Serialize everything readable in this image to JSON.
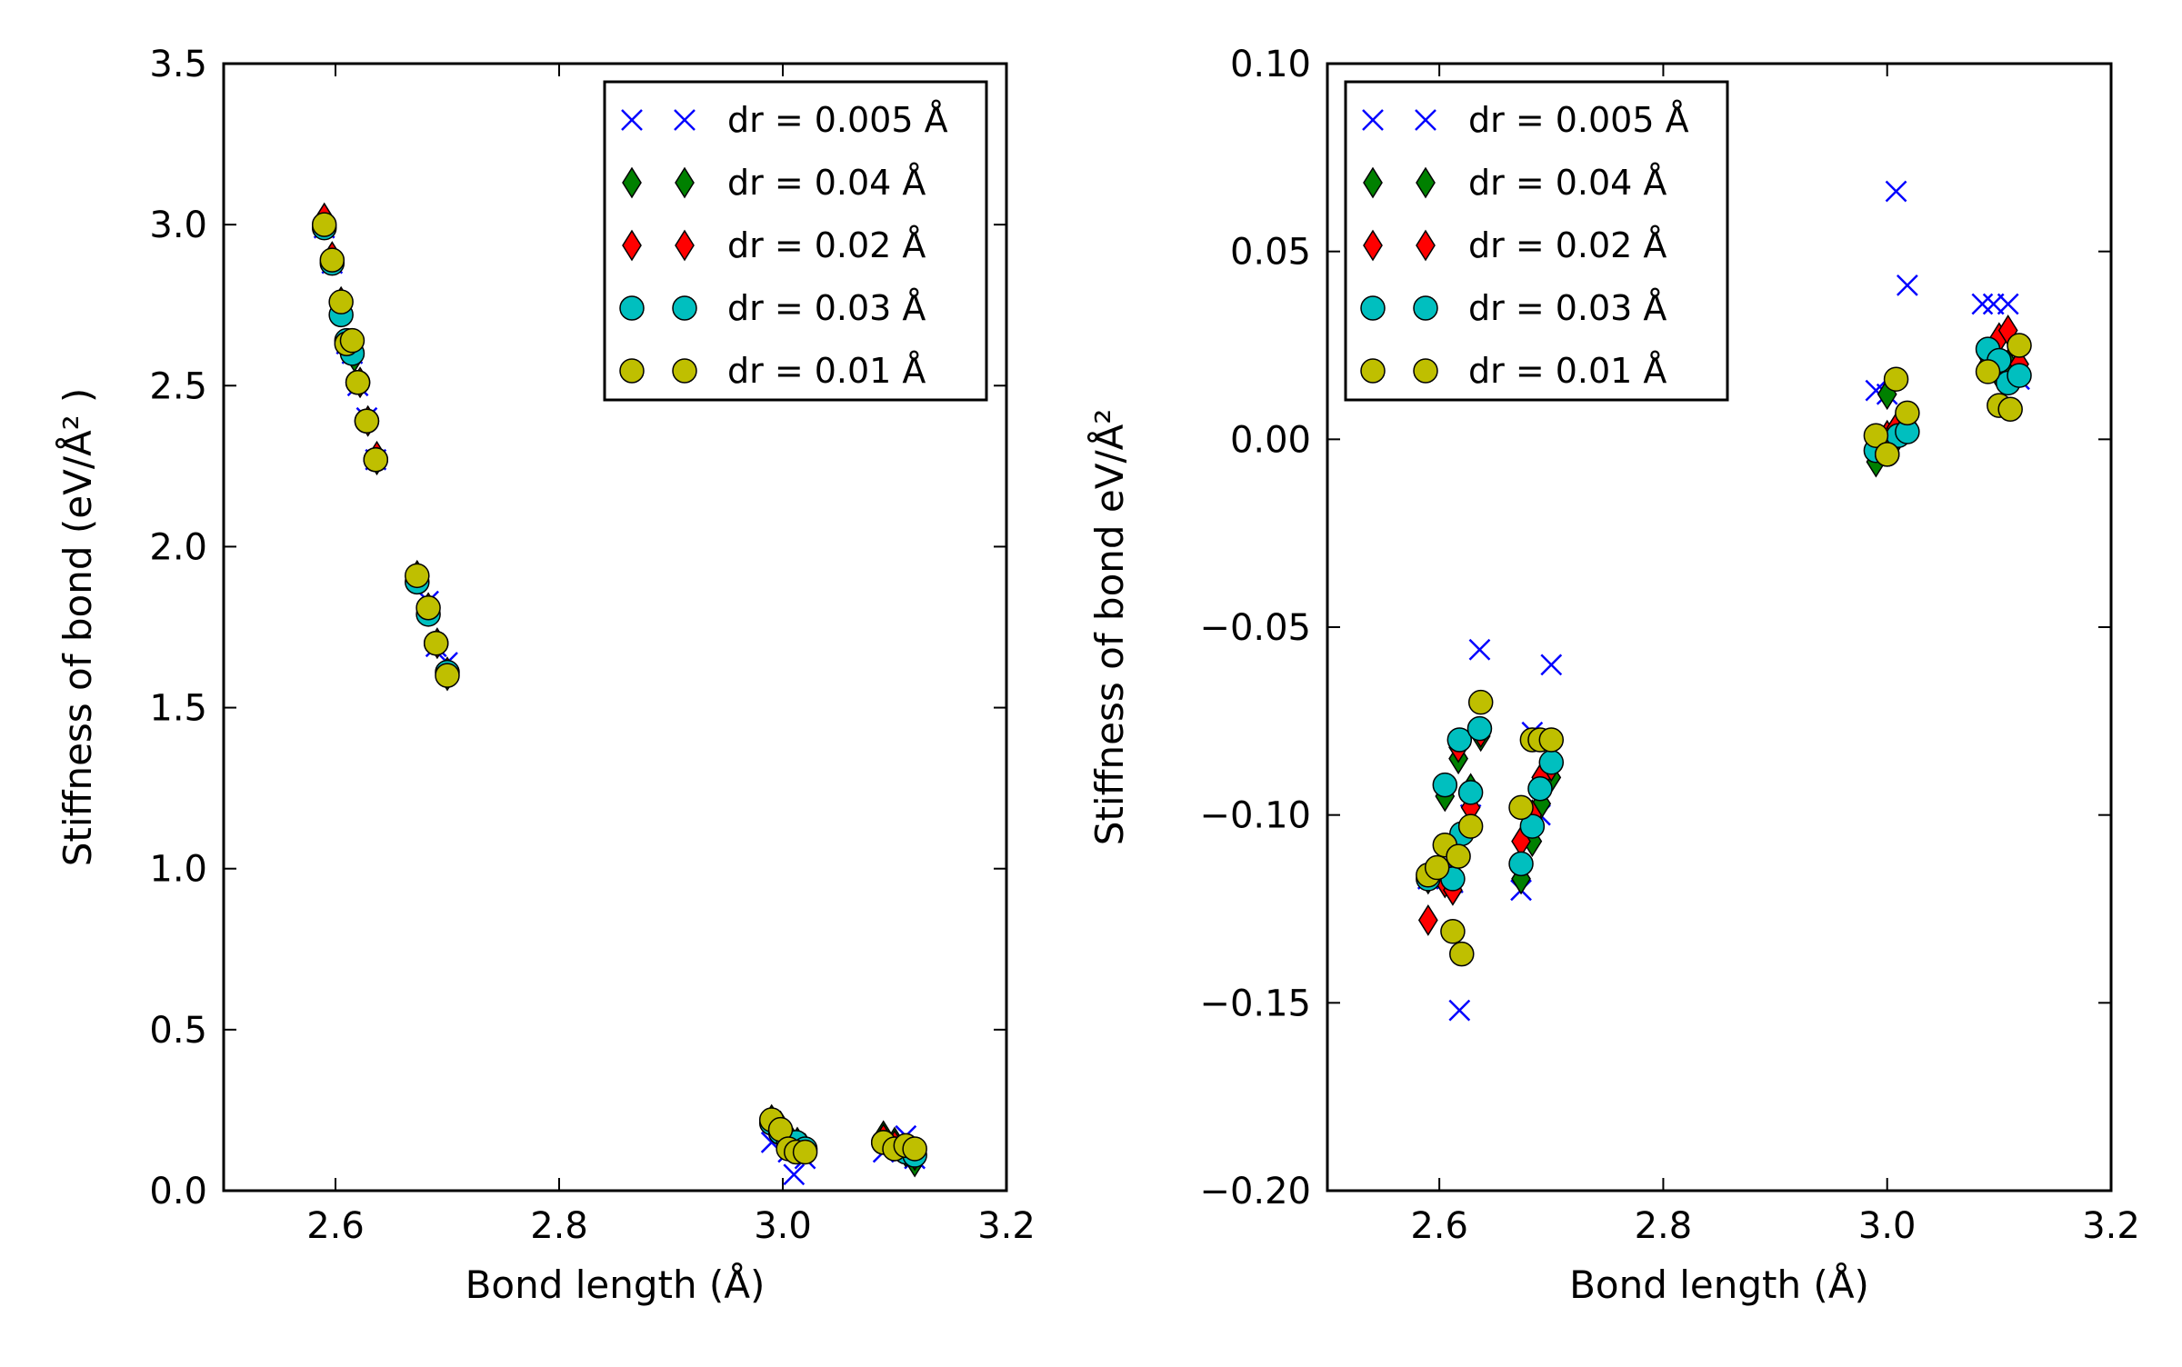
{
  "chart_data": [
    {
      "type": "scatter",
      "xlabel": "Bond length (Å)",
      "ylabel": "Stiffness of bond (eV/Å² )",
      "xlim": [
        2.5,
        3.2
      ],
      "ylim": [
        0.0,
        3.5
      ],
      "xticks": [
        "2.6",
        "2.8",
        "3.0",
        "3.2"
      ],
      "yticks": [
        "0.0",
        "0.5",
        "1.0",
        "1.5",
        "2.0",
        "2.5",
        "3.0",
        "3.5"
      ],
      "xtick_values": [
        2.6,
        2.8,
        3.0,
        3.2
      ],
      "ytick_values": [
        0.0,
        0.5,
        1.0,
        1.5,
        2.0,
        2.5,
        3.0,
        3.5
      ],
      "grid": false,
      "legend_position": "top-right",
      "series": [
        {
          "name": "dr = 0.005 Å",
          "marker": "x",
          "color": "#0000ff",
          "points": [
            [
              2.59,
              2.99
            ],
            [
              2.597,
              2.88
            ],
            [
              2.605,
              2.75
            ],
            [
              2.61,
              2.63
            ],
            [
              2.615,
              2.6
            ],
            [
              2.62,
              2.5
            ],
            [
              2.628,
              2.4
            ],
            [
              2.636,
              2.27
            ],
            [
              2.673,
              1.9
            ],
            [
              2.683,
              1.83
            ],
            [
              2.69,
              1.69
            ],
            [
              2.7,
              1.64
            ],
            [
              2.99,
              0.15
            ],
            [
              2.998,
              0.18
            ],
            [
              3.005,
              0.12
            ],
            [
              3.01,
              0.05
            ],
            [
              3.02,
              0.1
            ],
            [
              3.09,
              0.12
            ],
            [
              3.1,
              0.14
            ],
            [
              3.11,
              0.17
            ],
            [
              3.118,
              0.1
            ]
          ]
        },
        {
          "name": "dr = 0.04 Å",
          "marker": "diamond",
          "color": "#008000",
          "points": [
            [
              2.59,
              3.0
            ],
            [
              2.597,
              2.89
            ],
            [
              2.605,
              2.74
            ],
            [
              2.612,
              2.63
            ],
            [
              2.617,
              2.59
            ],
            [
              2.622,
              2.51
            ],
            [
              2.629,
              2.39
            ],
            [
              2.637,
              2.27
            ],
            [
              2.673,
              1.91
            ],
            [
              2.683,
              1.8
            ],
            [
              2.691,
              1.7
            ],
            [
              2.7,
              1.6
            ],
            [
              2.99,
              0.22
            ],
            [
              2.998,
              0.2
            ],
            [
              3.005,
              0.17
            ],
            [
              3.013,
              0.15
            ],
            [
              3.02,
              0.13
            ],
            [
              3.09,
              0.17
            ],
            [
              3.1,
              0.15
            ],
            [
              3.11,
              0.12
            ],
            [
              3.118,
              0.09
            ]
          ]
        },
        {
          "name": "dr = 0.02 Å",
          "marker": "diamond",
          "color": "#ff0000",
          "points": [
            [
              2.59,
              3.02
            ],
            [
              2.597,
              2.9
            ],
            [
              2.605,
              2.76
            ],
            [
              2.612,
              2.63
            ],
            [
              2.617,
              2.61
            ],
            [
              2.622,
              2.51
            ],
            [
              2.629,
              2.39
            ],
            [
              2.637,
              2.28
            ],
            [
              2.673,
              1.9
            ],
            [
              2.683,
              1.81
            ],
            [
              2.691,
              1.7
            ],
            [
              2.7,
              1.61
            ],
            [
              2.99,
              0.21
            ],
            [
              2.998,
              0.19
            ],
            [
              3.005,
              0.16
            ],
            [
              3.013,
              0.14
            ],
            [
              3.02,
              0.13
            ],
            [
              3.09,
              0.16
            ],
            [
              3.1,
              0.14
            ],
            [
              3.11,
              0.13
            ],
            [
              3.118,
              0.11
            ]
          ]
        },
        {
          "name": "dr = 0.03 Å",
          "marker": "circle",
          "color": "#00bfbf",
          "points": [
            [
              2.59,
              2.99
            ],
            [
              2.597,
              2.88
            ],
            [
              2.605,
              2.72
            ],
            [
              2.61,
              2.64
            ],
            [
              2.615,
              2.6
            ],
            [
              2.62,
              2.51
            ],
            [
              2.628,
              2.39
            ],
            [
              2.636,
              2.27
            ],
            [
              2.673,
              1.89
            ],
            [
              2.683,
              1.79
            ],
            [
              2.69,
              1.7
            ],
            [
              2.7,
              1.61
            ],
            [
              2.99,
              0.21
            ],
            [
              2.998,
              0.18
            ],
            [
              3.005,
              0.15
            ],
            [
              3.012,
              0.15
            ],
            [
              3.02,
              0.13
            ],
            [
              3.09,
              0.15
            ],
            [
              3.1,
              0.13
            ],
            [
              3.11,
              0.12
            ],
            [
              3.118,
              0.11
            ]
          ]
        },
        {
          "name": "dr = 0.01 Å",
          "marker": "circle",
          "color": "#bfbf00",
          "points": [
            [
              2.59,
              3.0
            ],
            [
              2.597,
              2.89
            ],
            [
              2.605,
              2.76
            ],
            [
              2.61,
              2.63
            ],
            [
              2.615,
              2.64
            ],
            [
              2.62,
              2.51
            ],
            [
              2.628,
              2.39
            ],
            [
              2.636,
              2.27
            ],
            [
              2.673,
              1.91
            ],
            [
              2.683,
              1.81
            ],
            [
              2.69,
              1.7
            ],
            [
              2.7,
              1.6
            ],
            [
              2.99,
              0.22
            ],
            [
              2.998,
              0.19
            ],
            [
              3.005,
              0.13
            ],
            [
              3.012,
              0.12
            ],
            [
              3.02,
              0.12
            ],
            [
              3.09,
              0.15
            ],
            [
              3.1,
              0.13
            ],
            [
              3.11,
              0.14
            ],
            [
              3.118,
              0.13
            ]
          ]
        }
      ]
    },
    {
      "type": "scatter",
      "xlabel": "Bond length (Å)",
      "ylabel": "Stiffness of bond eV/Å²",
      "xlim": [
        2.5,
        3.2
      ],
      "ylim": [
        -0.2,
        0.1
      ],
      "xticks": [
        "2.6",
        "2.8",
        "3.0",
        "3.2"
      ],
      "yticks": [
        "−0.20",
        "−0.15",
        "−0.10",
        "−0.05",
        "0.00",
        "0.05",
        "0.10"
      ],
      "xtick_values": [
        2.6,
        2.8,
        3.0,
        3.2
      ],
      "ytick_values": [
        -0.2,
        -0.15,
        -0.1,
        -0.05,
        0.0,
        0.05,
        0.1
      ],
      "grid": false,
      "legend_position": "top-left",
      "series": [
        {
          "name": "dr = 0.005 Å",
          "marker": "x",
          "color": "#0000ff",
          "points": [
            [
              2.59,
              -0.117
            ],
            [
              2.605,
              -0.115
            ],
            [
              2.612,
              -0.118
            ],
            [
              2.618,
              -0.152
            ],
            [
              2.628,
              -0.1
            ],
            [
              2.636,
              -0.056
            ],
            [
              2.673,
              -0.12
            ],
            [
              2.683,
              -0.078
            ],
            [
              2.69,
              -0.1
            ],
            [
              2.7,
              -0.06
            ],
            [
              2.99,
              0.013
            ],
            [
              3.0,
              0.012
            ],
            [
              3.008,
              0.066
            ],
            [
              3.018,
              0.041
            ],
            [
              3.085,
              0.036
            ],
            [
              3.095,
              0.036
            ],
            [
              3.108,
              0.036
            ],
            [
              3.118,
              0.016
            ]
          ]
        },
        {
          "name": "dr = 0.04 Å",
          "marker": "diamond",
          "color": "#008000",
          "points": [
            [
              2.59,
              -0.117
            ],
            [
              2.605,
              -0.095
            ],
            [
              2.612,
              -0.118
            ],
            [
              2.617,
              -0.085
            ],
            [
              2.628,
              -0.093
            ],
            [
              2.637,
              -0.079
            ],
            [
              2.673,
              -0.117
            ],
            [
              2.683,
              -0.107
            ],
            [
              2.691,
              -0.097
            ],
            [
              2.7,
              -0.09
            ],
            [
              2.99,
              -0.006
            ],
            [
              3.0,
              0.012
            ],
            [
              3.008,
              0.0
            ],
            [
              3.018,
              0.003
            ],
            [
              3.09,
              0.02
            ],
            [
              3.1,
              0.017
            ],
            [
              3.108,
              0.02
            ],
            [
              3.118,
              0.018
            ]
          ]
        },
        {
          "name": "dr = 0.02 Å",
          "marker": "diamond",
          "color": "#ff0000",
          "points": [
            [
              2.59,
              -0.128
            ],
            [
              2.605,
              -0.118
            ],
            [
              2.612,
              -0.12
            ],
            [
              2.617,
              -0.082
            ],
            [
              2.628,
              -0.098
            ],
            [
              2.637,
              -0.078
            ],
            [
              2.673,
              -0.107
            ],
            [
              2.683,
              -0.1
            ],
            [
              2.691,
              -0.09
            ],
            [
              2.7,
              -0.087
            ],
            [
              2.99,
              0.0
            ],
            [
              3.0,
              0.001
            ],
            [
              3.008,
              0.003
            ],
            [
              3.018,
              0.004
            ],
            [
              3.09,
              0.022
            ],
            [
              3.1,
              0.027
            ],
            [
              3.108,
              0.029
            ],
            [
              3.118,
              0.02
            ]
          ]
        },
        {
          "name": "dr = 0.03 Å",
          "marker": "circle",
          "color": "#00bfbf",
          "points": [
            [
              2.59,
              -0.117
            ],
            [
              2.605,
              -0.092
            ],
            [
              2.612,
              -0.117
            ],
            [
              2.618,
              -0.08
            ],
            [
              2.62,
              -0.105
            ],
            [
              2.628,
              -0.094
            ],
            [
              2.636,
              -0.077
            ],
            [
              2.673,
              -0.113
            ],
            [
              2.683,
              -0.103
            ],
            [
              2.69,
              -0.093
            ],
            [
              2.7,
              -0.086
            ],
            [
              2.99,
              -0.003
            ],
            [
              3.0,
              -0.004
            ],
            [
              3.01,
              0.001
            ],
            [
              3.018,
              0.002
            ],
            [
              3.09,
              0.024
            ],
            [
              3.1,
              0.021
            ],
            [
              3.108,
              0.015
            ],
            [
              3.118,
              0.017
            ]
          ]
        },
        {
          "name": "dr = 0.01 Å",
          "marker": "circle",
          "color": "#bfbf00",
          "points": [
            [
              2.59,
              -0.116
            ],
            [
              2.598,
              -0.114
            ],
            [
              2.605,
              -0.108
            ],
            [
              2.612,
              -0.131
            ],
            [
              2.617,
              -0.111
            ],
            [
              2.62,
              -0.137
            ],
            [
              2.628,
              -0.103
            ],
            [
              2.637,
              -0.07
            ],
            [
              2.673,
              -0.098
            ],
            [
              2.683,
              -0.08
            ],
            [
              2.69,
              -0.08
            ],
            [
              2.7,
              -0.08
            ],
            [
              2.99,
              0.001
            ],
            [
              3.0,
              -0.004
            ],
            [
              3.008,
              0.016
            ],
            [
              3.018,
              0.007
            ],
            [
              3.09,
              0.018
            ],
            [
              3.1,
              0.009
            ],
            [
              3.11,
              0.008
            ],
            [
              3.118,
              0.025
            ]
          ]
        }
      ]
    }
  ]
}
